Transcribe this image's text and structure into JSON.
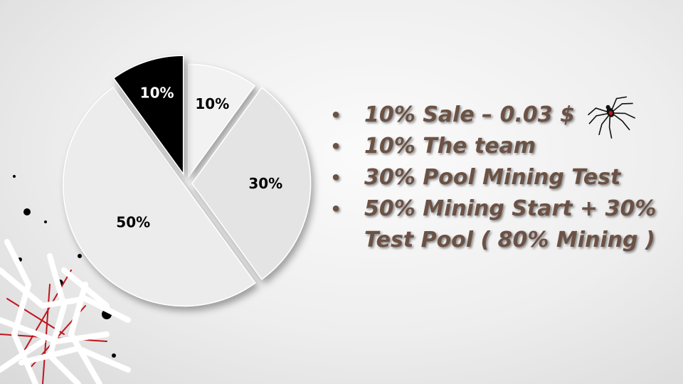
{
  "chart_data": {
    "type": "pie",
    "slices": [
      {
        "label": "10%",
        "value": 10,
        "color": "#f2f2f2",
        "label_color": "#000000"
      },
      {
        "label": "30%",
        "value": 30,
        "color": "#e4e4e4",
        "label_color": "#000000"
      },
      {
        "label": "50%",
        "value": 50,
        "color": "#ececec",
        "label_color": "#000000"
      },
      {
        "label": "10%",
        "value": 10,
        "color": "#000000",
        "label_color": "#ffffff"
      }
    ]
  },
  "legend": {
    "bullet": "•",
    "items": [
      "10% Sale  – 0.03 $",
      "10% The team",
      "30% Pool Mining Test",
      "50% Mining Start + 30% Test Pool ( 80% Mining )"
    ]
  },
  "decor": {
    "spider_icon": "spider-icon",
    "branch_icon": "branch-decoration",
    "accent_color": "#c0141c"
  }
}
